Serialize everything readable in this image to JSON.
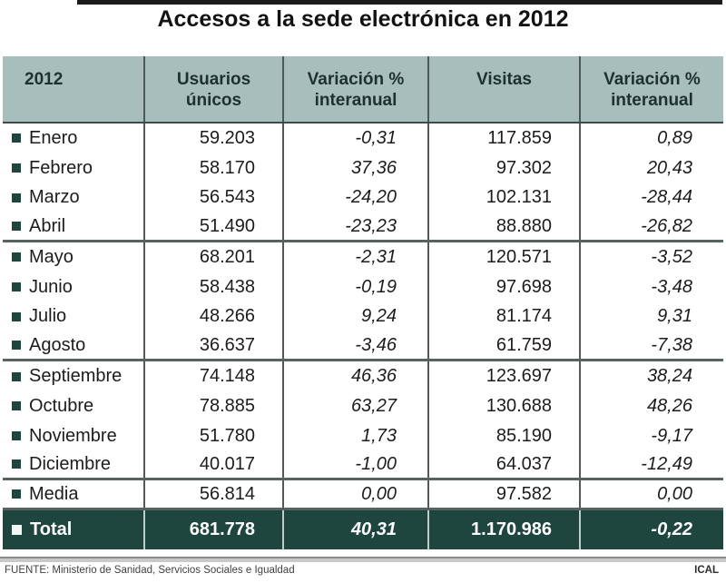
{
  "title": "Accesos a la sede electrónica en 2012",
  "chart_data": {
    "type": "table",
    "title": "Accesos a la sede electrónica en 2012",
    "columns": [
      "2012",
      "Usuarios únicos",
      "Variación % interanual",
      "Visitas",
      "Variación % interanual"
    ],
    "rows": [
      {
        "label": "Enero",
        "unique_users": "59.203",
        "var_unique": "-0,31",
        "visits": "117.859",
        "var_visits": "0,89",
        "rule_below": false
      },
      {
        "label": "Febrero",
        "unique_users": "58.170",
        "var_unique": "37,36",
        "visits": "97.302",
        "var_visits": "20,43",
        "rule_below": false
      },
      {
        "label": "Marzo",
        "unique_users": "56.543",
        "var_unique": "-24,20",
        "visits": "102.131",
        "var_visits": "-28,44",
        "rule_below": false
      },
      {
        "label": "Abril",
        "unique_users": "51.490",
        "var_unique": "-23,23",
        "visits": "88.880",
        "var_visits": "-26,82",
        "rule_below": true
      },
      {
        "label": "Mayo",
        "unique_users": "68.201",
        "var_unique": "-2,31",
        "visits": "120.571",
        "var_visits": "-3,52",
        "rule_below": false
      },
      {
        "label": "Junio",
        "unique_users": "58.438",
        "var_unique": "-0,19",
        "visits": "97.698",
        "var_visits": "-3,48",
        "rule_below": false
      },
      {
        "label": "Julio",
        "unique_users": "48.266",
        "var_unique": "9,24",
        "visits": "81.174",
        "var_visits": "9,31",
        "rule_below": false
      },
      {
        "label": "Agosto",
        "unique_users": "36.637",
        "var_unique": "-3,46",
        "visits": "61.759",
        "var_visits": "-7,38",
        "rule_below": true
      },
      {
        "label": "Septiembre",
        "unique_users": "74.148",
        "var_unique": "46,36",
        "visits": "123.697",
        "var_visits": "38,24",
        "rule_below": false
      },
      {
        "label": "Octubre",
        "unique_users": "78.885",
        "var_unique": "63,27",
        "visits": "130.688",
        "var_visits": "48,26",
        "rule_below": false
      },
      {
        "label": "Noviembre",
        "unique_users": "51.780",
        "var_unique": "1,73",
        "visits": "85.190",
        "var_visits": "-9,17",
        "rule_below": false
      },
      {
        "label": "Diciembre",
        "unique_users": "40.017",
        "var_unique": "-1,00",
        "visits": "64.037",
        "var_visits": "-12,49",
        "rule_below": true
      },
      {
        "label": "Media",
        "unique_users": "56.814",
        "var_unique": "0,00",
        "visits": "97.582",
        "var_visits": "0,00",
        "rule_below": true
      }
    ],
    "total": {
      "label": "Total",
      "unique_users": "681.778",
      "var_unique": "40,31",
      "visits": "1.170.986",
      "var_visits": "-0,22"
    }
  },
  "table": {
    "headers": [
      {
        "line1": "2012",
        "line2": ""
      },
      {
        "line1": "Usuarios",
        "line2": "únicos"
      },
      {
        "line1": "Variación %",
        "line2": "interanual"
      },
      {
        "line1": "Visitas",
        "line2": ""
      },
      {
        "line1": "Variación %",
        "line2": "interanual"
      }
    ]
  },
  "footer": {
    "source": "FUENTE: Ministerio de Sanidad, Servicios Sociales e Igualdad",
    "credit": "ICAL"
  },
  "colors": {
    "header_bg": "#a8bebc",
    "total_bg": "#1e463e",
    "bullet": "#1e463e"
  }
}
